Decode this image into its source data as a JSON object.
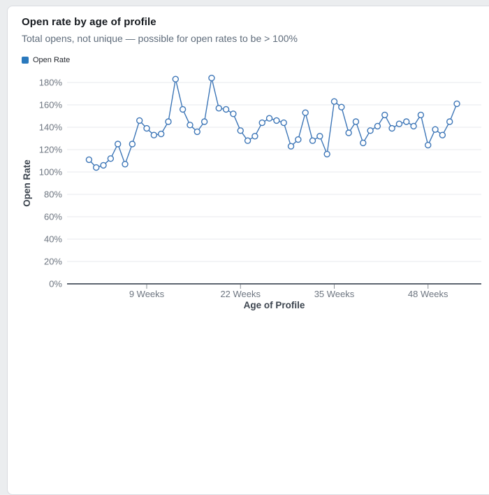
{
  "page": {
    "background": "#ebedef"
  },
  "card": {
    "title": "Open rate by age of profile",
    "subtitle": "Total opens, not unique — possible for open rates to be > 100%"
  },
  "legend": {
    "items": [
      {
        "label": "Open Rate",
        "color": "#2a79bd"
      }
    ]
  },
  "chart_data": {
    "type": "line",
    "title": "Open rate by age of profile",
    "xlabel": "Age of Profile",
    "ylabel": "Open Rate",
    "x_unit": "Weeks",
    "x": [
      1,
      2,
      3,
      4,
      5,
      6,
      7,
      8,
      9,
      10,
      11,
      12,
      13,
      14,
      15,
      16,
      17,
      18,
      19,
      20,
      21,
      22,
      23,
      24,
      25,
      26,
      27,
      28,
      29,
      30,
      31,
      32,
      33,
      34,
      35,
      36,
      37,
      38,
      39,
      40,
      41,
      42,
      43,
      44,
      45,
      46,
      47,
      48,
      49,
      50,
      51,
      52
    ],
    "series": [
      {
        "name": "Open Rate",
        "values": [
          111,
          104,
          106,
          112,
          125,
          107,
          125,
          146,
          139,
          133,
          134,
          145,
          183,
          156,
          142,
          136,
          145,
          184,
          157,
          156,
          152,
          137,
          128,
          132,
          144,
          148,
          146,
          144,
          123,
          129,
          153,
          128,
          132,
          116,
          163,
          158,
          135,
          145,
          126,
          137,
          141,
          151,
          139,
          143,
          145,
          141,
          151,
          124,
          138,
          133,
          145,
          161
        ]
      }
    ],
    "value_suffix": "%",
    "ylim": [
      0,
      190
    ],
    "y_tick_step": 20,
    "y_tick_max": 180,
    "x_tick_values": [
      9,
      22,
      35,
      48
    ],
    "x_tick_labels": [
      "9 Weeks",
      "22 Weeks",
      "35 Weeks",
      "48 Weeks"
    ],
    "grid": "horizontal",
    "legend_position": "top-left",
    "line_color": "#3d76b7",
    "marker": "open-circle",
    "marker_fill": "#ffffff",
    "grid_color": "#e7e8ec",
    "axis_line_color": "#5d6570",
    "tick_label_color": "#6e7681",
    "axis_title_color": "#3d454f"
  }
}
